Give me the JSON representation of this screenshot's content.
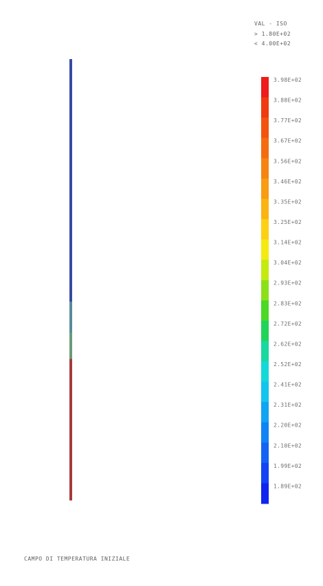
{
  "legend": {
    "header": "VAL - ISO",
    "max_line": "> 1.80E+02",
    "min_line": "< 4.00E+02",
    "levels": [
      {
        "label": "3.98E+02",
        "color": "#ee1c1c"
      },
      {
        "label": "3.88E+02",
        "color": "#f03a10"
      },
      {
        "label": "3.77E+02",
        "color": "#f25410"
      },
      {
        "label": "3.67E+02",
        "color": "#f46c10"
      },
      {
        "label": "3.56E+02",
        "color": "#f68412"
      },
      {
        "label": "3.46E+02",
        "color": "#f89c12"
      },
      {
        "label": "3.35E+02",
        "color": "#fab414"
      },
      {
        "label": "3.25E+02",
        "color": "#fcd014"
      },
      {
        "label": "3.14E+02",
        "color": "#f4ea12"
      },
      {
        "label": "3.04E+02",
        "color": "#c4ea12"
      },
      {
        "label": "2.93E+02",
        "color": "#8ce01a"
      },
      {
        "label": "2.83E+02",
        "color": "#4cd824"
      },
      {
        "label": "2.72E+02",
        "color": "#20d45a"
      },
      {
        "label": "2.62E+02",
        "color": "#18d8a0"
      },
      {
        "label": "2.52E+02",
        "color": "#14d8d8"
      },
      {
        "label": "2.41E+02",
        "color": "#12c4ee"
      },
      {
        "label": "2.31E+02",
        "color": "#10a4f2"
      },
      {
        "label": "2.20E+02",
        "color": "#1084f4"
      },
      {
        "label": "2.10E+02",
        "color": "#1464f4"
      },
      {
        "label": "1.99E+02",
        "color": "#1444f4"
      },
      {
        "label": "1.89E+02",
        "color": "#1024f0"
      }
    ]
  },
  "bar": {
    "segments": [
      {
        "from": 0.0,
        "to": 0.55,
        "color": "#3a4aa0"
      },
      {
        "from": 0.55,
        "to": 0.62,
        "color": "#5a8a98"
      },
      {
        "from": 0.62,
        "to": 0.68,
        "color": "#6a9a7a"
      },
      {
        "from": 0.68,
        "to": 1.0,
        "color": "#a43a3a"
      }
    ]
  },
  "caption": "CAMPO DI TEMPERATURA INIZIALE"
}
